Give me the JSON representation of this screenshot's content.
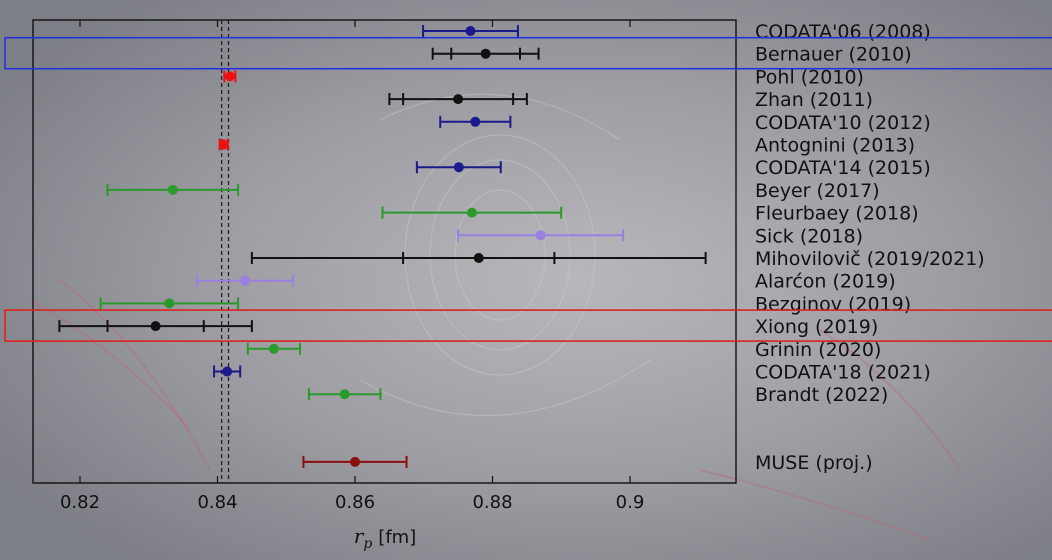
{
  "chart_data": {
    "type": "scatter",
    "title": "",
    "xlabel_var": "r",
    "xlabel_sub": "p",
    "xlabel_unit": "[fm]",
    "xlim": [
      0.813,
      0.914
    ],
    "xticks": [
      0.82,
      0.84,
      0.86,
      0.88,
      0.9
    ],
    "xtick_labels": [
      "0.82",
      "0.84",
      "0.86",
      "0.88",
      "0.9"
    ],
    "reference_lines": [
      0.8406,
      0.8416
    ],
    "colors": {
      "navy": "#1a1a8a",
      "black": "#111111",
      "red": "#ee1111",
      "green": "#2a9a2a",
      "lavender": "#9a80e0",
      "darkred": "#8b0f0f"
    },
    "measurements": [
      {
        "label": "CODATA'06 (2008)",
        "value": 0.8768,
        "inner": null,
        "outer": [
          0.8699,
          0.8837
        ],
        "color": "navy",
        "highlight": null
      },
      {
        "label": "Bernauer (2010)",
        "value": 0.879,
        "inner": [
          0.874,
          0.884
        ],
        "outer": [
          0.8713,
          0.8867
        ],
        "color": "black",
        "highlight": "#2233dd"
      },
      {
        "label": "Pohl (2010)",
        "value": 0.8418,
        "inner": null,
        "outer": [
          0.841,
          0.8426
        ],
        "color": "red",
        "highlight": null
      },
      {
        "label": "Zhan (2011)",
        "value": 0.875,
        "inner": [
          0.867,
          0.883
        ],
        "outer": [
          0.865,
          0.885
        ],
        "color": "black",
        "highlight": null
      },
      {
        "label": "CODATA'10 (2012)",
        "value": 0.8775,
        "inner": null,
        "outer": [
          0.8724,
          0.8826
        ],
        "color": "navy",
        "highlight": null
      },
      {
        "label": "Antognini (2013)",
        "value": 0.8409,
        "inner": null,
        "outer": [
          0.8403,
          0.8415
        ],
        "color": "red",
        "highlight": null
      },
      {
        "label": "CODATA'14 (2015)",
        "value": 0.8751,
        "inner": null,
        "outer": [
          0.869,
          0.8812
        ],
        "color": "navy",
        "highlight": null
      },
      {
        "label": "Beyer (2017)",
        "value": 0.8335,
        "inner": null,
        "outer": [
          0.824,
          0.843
        ],
        "color": "green",
        "highlight": null
      },
      {
        "label": "Fleurbaey (2018)",
        "value": 0.877,
        "inner": null,
        "outer": [
          0.864,
          0.89
        ],
        "color": "green",
        "highlight": null
      },
      {
        "label": "Sick (2018)",
        "value": 0.887,
        "inner": null,
        "outer": [
          0.875,
          0.899
        ],
        "color": "lavender",
        "highlight": null
      },
      {
        "label": "Mihovilovič (2019/2021)",
        "value": 0.878,
        "inner": [
          0.867,
          0.889
        ],
        "outer": [
          0.845,
          0.911
        ],
        "color": "black",
        "highlight": null
      },
      {
        "label": "Alarćon (2019)",
        "value": 0.844,
        "inner": null,
        "outer": [
          0.837,
          0.851
        ],
        "color": "lavender",
        "highlight": null
      },
      {
        "label": "Bezginov (2019)",
        "value": 0.833,
        "inner": null,
        "outer": [
          0.823,
          0.843
        ],
        "color": "green",
        "highlight": null
      },
      {
        "label": "Xiong (2019)",
        "value": 0.831,
        "inner": [
          0.824,
          0.838
        ],
        "outer": [
          0.817,
          0.845
        ],
        "color": "black",
        "highlight": "#dd2222"
      },
      {
        "label": "Grinin (2020)",
        "value": 0.8482,
        "inner": null,
        "outer": [
          0.8444,
          0.852
        ],
        "color": "green",
        "highlight": null
      },
      {
        "label": "CODATA'18 (2021)",
        "value": 0.8414,
        "inner": null,
        "outer": [
          0.8395,
          0.8433
        ],
        "color": "navy",
        "highlight": null
      },
      {
        "label": "Brandt (2022)",
        "value": 0.8585,
        "inner": null,
        "outer": [
          0.8533,
          0.8637
        ],
        "color": "green",
        "highlight": null
      },
      {
        "label": "MUSE (proj.)",
        "value": 0.86,
        "inner": null,
        "outer": [
          0.8525,
          0.8675
        ],
        "color": "darkred",
        "highlight": null,
        "gap_before": true
      }
    ]
  }
}
